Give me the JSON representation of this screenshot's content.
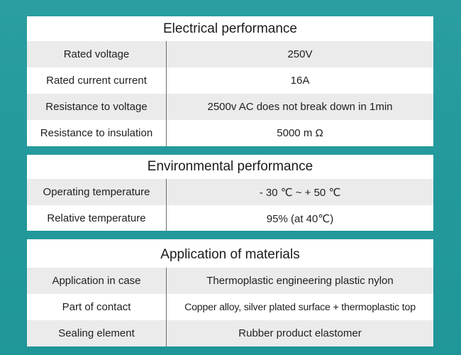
{
  "electrical": {
    "title": "Electrical performance",
    "rows": [
      {
        "label": "Rated voltage",
        "value": "250V"
      },
      {
        "label": "Rated current current",
        "value": "16A"
      },
      {
        "label": "Resistance to voltage",
        "value": "2500v AC does not break down in 1min"
      },
      {
        "label": "Resistance to insulation",
        "value": "5000 m Ω"
      }
    ]
  },
  "environmental": {
    "title": "Environmental performance",
    "rows": [
      {
        "label": "Operating temperature",
        "value": "- 30 ℃ ~ + 50 ℃"
      },
      {
        "label": "Relative temperature",
        "value": "95% (at 40℃)"
      }
    ]
  },
  "materials": {
    "title": "Application of materials",
    "rows": [
      {
        "label": "Application in case",
        "value": "Thermoplastic engineering plastic nylon"
      },
      {
        "label": "Part of contact",
        "value": "Copper alloy, silver plated surface + thermoplastic top"
      },
      {
        "label": "Sealing element",
        "value": "Rubber product elastomer"
      }
    ]
  },
  "colors": {
    "background": "#23999b",
    "card": "#ffffff",
    "row_shade": "#ebebeb",
    "divider": "#6d6d6d"
  }
}
